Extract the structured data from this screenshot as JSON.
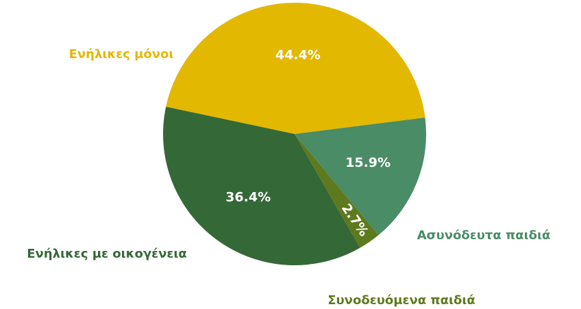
{
  "chart_data": {
    "type": "pie",
    "categories": [
      "Ενήλικες μόνοι",
      "Ασυνόδευτα παιδιά",
      "Συνοδευόμενα παιδιά",
      "Ενήλικες με οικογένεια"
    ],
    "values": [
      44.4,
      15.9,
      2.7,
      36.4
    ],
    "value_labels": [
      "44.4%",
      "15.9%",
      "2.7%",
      "36.4%"
    ],
    "colors": [
      "#e3b800",
      "#4a8c66",
      "#5e7a1e",
      "#356837"
    ]
  }
}
